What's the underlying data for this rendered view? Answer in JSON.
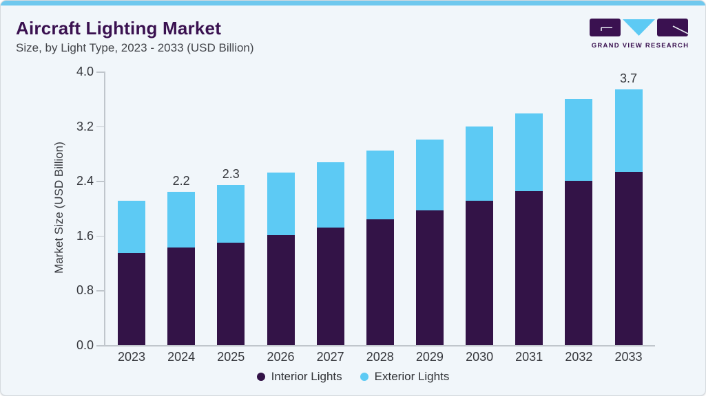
{
  "header": {
    "title": "Aircraft Lighting Market",
    "subtitle": "Size, by Light Type, 2023 - 2033 (USD Billion)"
  },
  "logo": {
    "brand": "GRAND VIEW RESEARCH"
  },
  "colors": {
    "background": "#f1f6fa",
    "accent_strip": "#6fc8ee",
    "title_text": "#3a1150",
    "body_text": "#35373c",
    "axis_line": "#c0c6cc",
    "interior_purple": "#331347",
    "exterior_blue": "#5dcaf4"
  },
  "chart_data": {
    "type": "bar",
    "stacked": true,
    "title": "Aircraft Lighting Market Size, by Light Type, 2023 - 2033 (USD Billion)",
    "categories": [
      "2023",
      "2024",
      "2025",
      "2026",
      "2027",
      "2028",
      "2029",
      "2030",
      "2031",
      "2032",
      "2033"
    ],
    "series": [
      {
        "name": "Interior Lights",
        "color": "#331347",
        "values": [
          1.35,
          1.43,
          1.5,
          1.61,
          1.72,
          1.84,
          1.97,
          2.11,
          2.25,
          2.4,
          2.53
        ]
      },
      {
        "name": "Exterior Lights",
        "color": "#5dcaf4",
        "values": [
          0.76,
          0.81,
          0.84,
          0.91,
          0.95,
          1.0,
          1.04,
          1.09,
          1.14,
          1.2,
          1.21
        ]
      }
    ],
    "bar_labels": {
      "2024": "2.2",
      "2025": "2.3",
      "2033": "3.7"
    },
    "xlabel": "",
    "ylabel": "Market Size (USD Billion)",
    "ylim": [
      0.0,
      4.0
    ],
    "yticks": [
      "0.0",
      "0.8",
      "1.6",
      "2.4",
      "3.2",
      "4.0"
    ],
    "grid": false,
    "legend_position": "bottom"
  }
}
